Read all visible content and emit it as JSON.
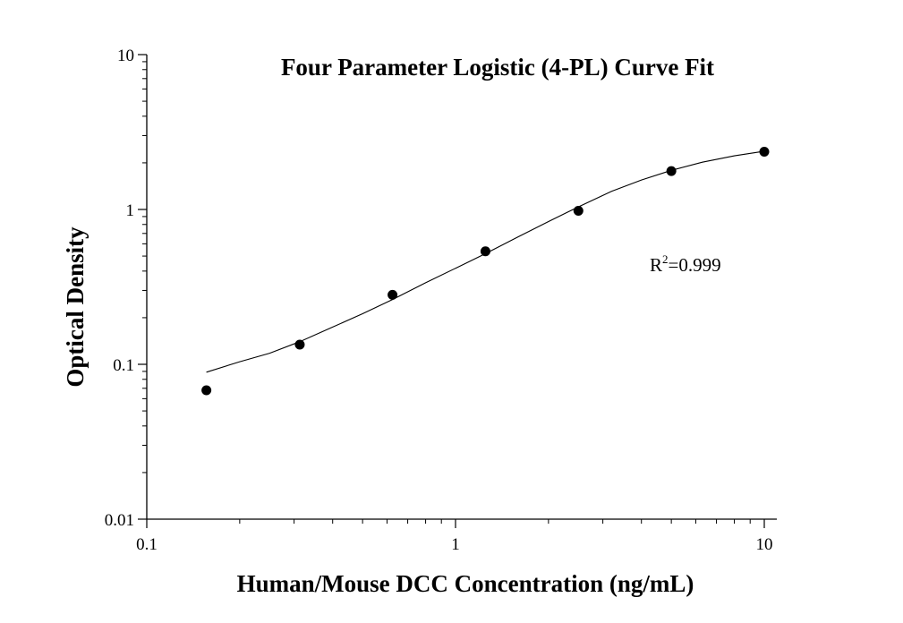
{
  "chart_data": {
    "type": "scatter",
    "title": "Four Parameter Logistic (4-PL) Curve Fit",
    "xlabel": "Human/Mouse DCC Concentration (ng/mL)",
    "ylabel": "Optical Density",
    "x_scale": "log",
    "y_scale": "log",
    "xlim": [
      0.1,
      10
    ],
    "ylim": [
      0.01,
      10
    ],
    "x_ticks": [
      "0.1",
      "1",
      "10"
    ],
    "y_ticks": [
      "0.01",
      "0.1",
      "1",
      "10"
    ],
    "grid": false,
    "points": {
      "x": [
        0.156,
        0.313,
        0.625,
        1.25,
        2.5,
        5,
        10
      ],
      "y": [
        0.068,
        0.134,
        0.281,
        0.537,
        0.98,
        1.77,
        2.36
      ]
    },
    "fit": {
      "model": "4-PL",
      "x": [
        0.156,
        0.2,
        0.25,
        0.313,
        0.4,
        0.5,
        0.625,
        0.8,
        1.0,
        1.25,
        1.6,
        2.0,
        2.5,
        3.2,
        4.0,
        5.0,
        6.3,
        8.0,
        10
      ],
      "y": [
        0.089,
        0.104,
        0.118,
        0.14,
        0.174,
        0.212,
        0.262,
        0.336,
        0.417,
        0.518,
        0.667,
        0.836,
        1.04,
        1.31,
        1.55,
        1.79,
        2.02,
        2.22,
        2.38
      ]
    },
    "annotation": {
      "base": "R",
      "sup": "2",
      "text": "=0.999"
    }
  }
}
